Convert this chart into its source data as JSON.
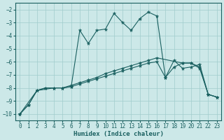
{
  "xlabel": "Humidex (Indice chaleur)",
  "bg_color": "#cce8e8",
  "grid_color": "#a0cccc",
  "line_color": "#1a6060",
  "xlim": [
    -0.5,
    23.5
  ],
  "ylim": [
    -10.5,
    -1.5
  ],
  "xticks": [
    0,
    1,
    2,
    3,
    4,
    5,
    6,
    7,
    8,
    9,
    10,
    11,
    12,
    13,
    14,
    15,
    16,
    17,
    18,
    19,
    20,
    21,
    22,
    23
  ],
  "yticks": [
    -10,
    -9,
    -8,
    -7,
    -6,
    -5,
    -4,
    -3,
    -2
  ],
  "line1_x": [
    0,
    1,
    2,
    3,
    4,
    5,
    6,
    7,
    8,
    9,
    10,
    11,
    12,
    13,
    14,
    15,
    16,
    17,
    18,
    19,
    20,
    21,
    22,
    23
  ],
  "line1_y": [
    -10.0,
    -9.3,
    -8.2,
    -8.0,
    -8.0,
    -8.0,
    -7.9,
    -7.7,
    -7.5,
    -7.3,
    -7.1,
    -6.9,
    -6.7,
    -6.5,
    -6.3,
    -6.1,
    -6.0,
    -7.2,
    -6.4,
    -6.1,
    -6.1,
    -6.5,
    -8.5,
    -8.7
  ],
  "line2_x": [
    0,
    1,
    2,
    3,
    4,
    5,
    6,
    7,
    8,
    9,
    10,
    11,
    12,
    13,
    14,
    15,
    16,
    17,
    18,
    19,
    20,
    21,
    22,
    23
  ],
  "line2_y": [
    -10.0,
    -9.3,
    -8.2,
    -8.0,
    -8.0,
    -8.0,
    -7.9,
    -3.6,
    -4.6,
    -3.6,
    -3.5,
    -2.3,
    -3.0,
    -3.6,
    -2.7,
    -2.2,
    -2.5,
    -7.2,
    -5.9,
    -6.5,
    -6.4,
    -6.2,
    -8.5,
    -8.7
  ],
  "line3_x": [
    0,
    2,
    4,
    5,
    6,
    7,
    8,
    9,
    10,
    11,
    12,
    13,
    14,
    15,
    16,
    19,
    20,
    21,
    22,
    23
  ],
  "line3_y": [
    -10.0,
    -8.2,
    -8.0,
    -8.0,
    -7.8,
    -7.6,
    -7.4,
    -7.2,
    -6.9,
    -6.7,
    -6.5,
    -6.3,
    -6.1,
    -5.9,
    -5.7,
    -6.1,
    -6.1,
    -6.4,
    -8.5,
    -8.7
  ]
}
